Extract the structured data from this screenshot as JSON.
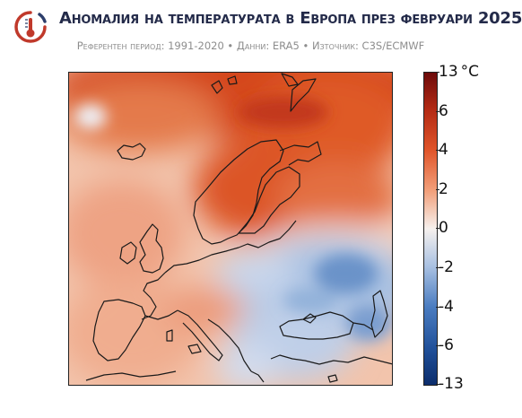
{
  "title": "Аномалия на температурата в Европа през февруари 2025",
  "subtitle": "Референтен период: 1991-2020 • Данни: ERA5 • Източник: C3S/ECMWF",
  "logo_icon": "thermometer-in-circle-icon",
  "colors": {
    "warm_max": "#7a0c0c",
    "warm": "#d9501e",
    "warm_light": "#f3b89a",
    "neutral": "#f6f1ee",
    "cool_light": "#b9cde6",
    "cool": "#3b6db0",
    "cool_max": "#0b2c6b",
    "coastline": "#1a1a1a"
  },
  "colorbar": {
    "unit": "°C",
    "ticks": [
      "13",
      "6",
      "4",
      "2",
      "0",
      "-2",
      "-4",
      "-6",
      "-13"
    ]
  }
}
